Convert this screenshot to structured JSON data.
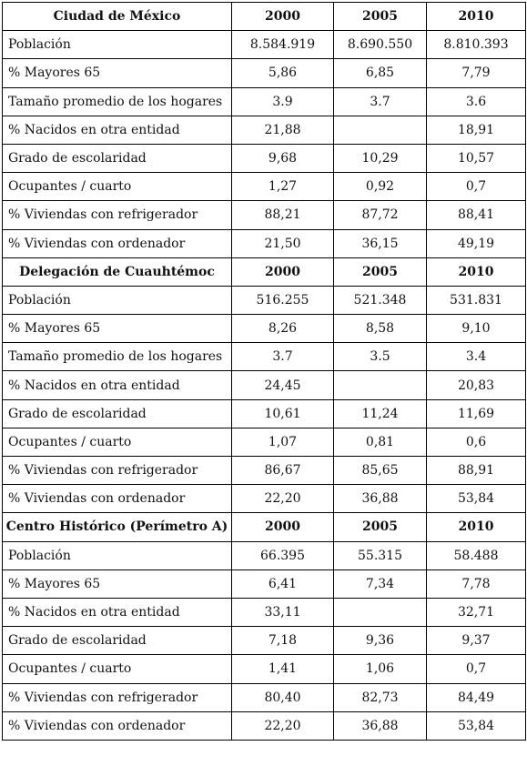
{
  "sections": [
    {
      "header": {
        "title": "Ciudad de México",
        "years": [
          "2000",
          "2005",
          "2010"
        ]
      },
      "rows": [
        {
          "label": "Población",
          "values": [
            "8.584.919",
            "8.690.550",
            "8.810.393"
          ]
        },
        {
          "label": "% Mayores 65",
          "values": [
            "5,86",
            "6,85",
            "7,79"
          ]
        },
        {
          "label": "Tamaño promedio de los hogares",
          "values": [
            "3.9",
            "3.7",
            "3.6"
          ]
        },
        {
          "label": "% Nacidos en otra entidad",
          "values": [
            "21,88",
            "",
            "18,91"
          ]
        },
        {
          "label": "Grado de escolaridad",
          "values": [
            "9,68",
            "10,29",
            "10,57"
          ]
        },
        {
          "label": "Ocupantes / cuarto",
          "values": [
            "1,27",
            "0,92",
            "0,7"
          ]
        },
        {
          "label": "% Viviendas con refrigerador",
          "values": [
            "88,21",
            "87,72",
            "88,41"
          ]
        },
        {
          "label": "% Viviendas con ordenador",
          "values": [
            "21,50",
            "36,15",
            "49,19"
          ]
        }
      ]
    },
    {
      "header": {
        "title": "Delegación de Cuauhtémoc",
        "years": [
          "2000",
          "2005",
          "2010"
        ]
      },
      "rows": [
        {
          "label": "Población",
          "values": [
            "516.255",
            "521.348",
            "531.831"
          ]
        },
        {
          "label": "% Mayores 65",
          "values": [
            "8,26",
            "8,58",
            "9,10"
          ]
        },
        {
          "label": "Tamaño promedio de los hogares",
          "values": [
            "3.7",
            "3.5",
            "3.4"
          ]
        },
        {
          "label": "% Nacidos en otra entidad",
          "values": [
            "24,45",
            "",
            "20,83"
          ]
        },
        {
          "label": "Grado de escolaridad",
          "values": [
            "10,61",
            "11,24",
            "11,69"
          ]
        },
        {
          "label": "Ocupantes / cuarto",
          "values": [
            "1,07",
            "0,81",
            "0,6"
          ]
        },
        {
          "label": "% Viviendas con refrigerador",
          "values": [
            "86,67",
            "85,65",
            "88,91"
          ]
        },
        {
          "label": "% Viviendas con ordenador",
          "values": [
            "22,20",
            "36,88",
            "53,84"
          ]
        }
      ]
    },
    {
      "header": {
        "title": "Centro Histórico (Perímetro A)",
        "years": [
          "2000",
          "2005",
          "2010"
        ]
      },
      "rows": [
        {
          "label": "Población",
          "values": [
            "66.395",
            "55.315",
            "58.488"
          ]
        },
        {
          "label": "% Mayores 65",
          "values": [
            "6,41",
            "7,34",
            "7,78"
          ]
        },
        {
          "label": "% Nacidos en otra entidad",
          "values": [
            "33,11",
            "",
            "32,71"
          ]
        },
        {
          "label": "Grado de escolaridad",
          "values": [
            "7,18",
            "9,36",
            "9,37"
          ]
        },
        {
          "label": "Ocupantes / cuarto",
          "values": [
            "1,41",
            "1,06",
            "0,7"
          ]
        },
        {
          "label": "% Viviendas con refrigerador",
          "values": [
            "80,40",
            "82,73",
            "84,49"
          ]
        },
        {
          "label": "% Viviendas con ordenador",
          "values": [
            "22,20",
            "36,88",
            "53,84"
          ]
        }
      ]
    }
  ]
}
